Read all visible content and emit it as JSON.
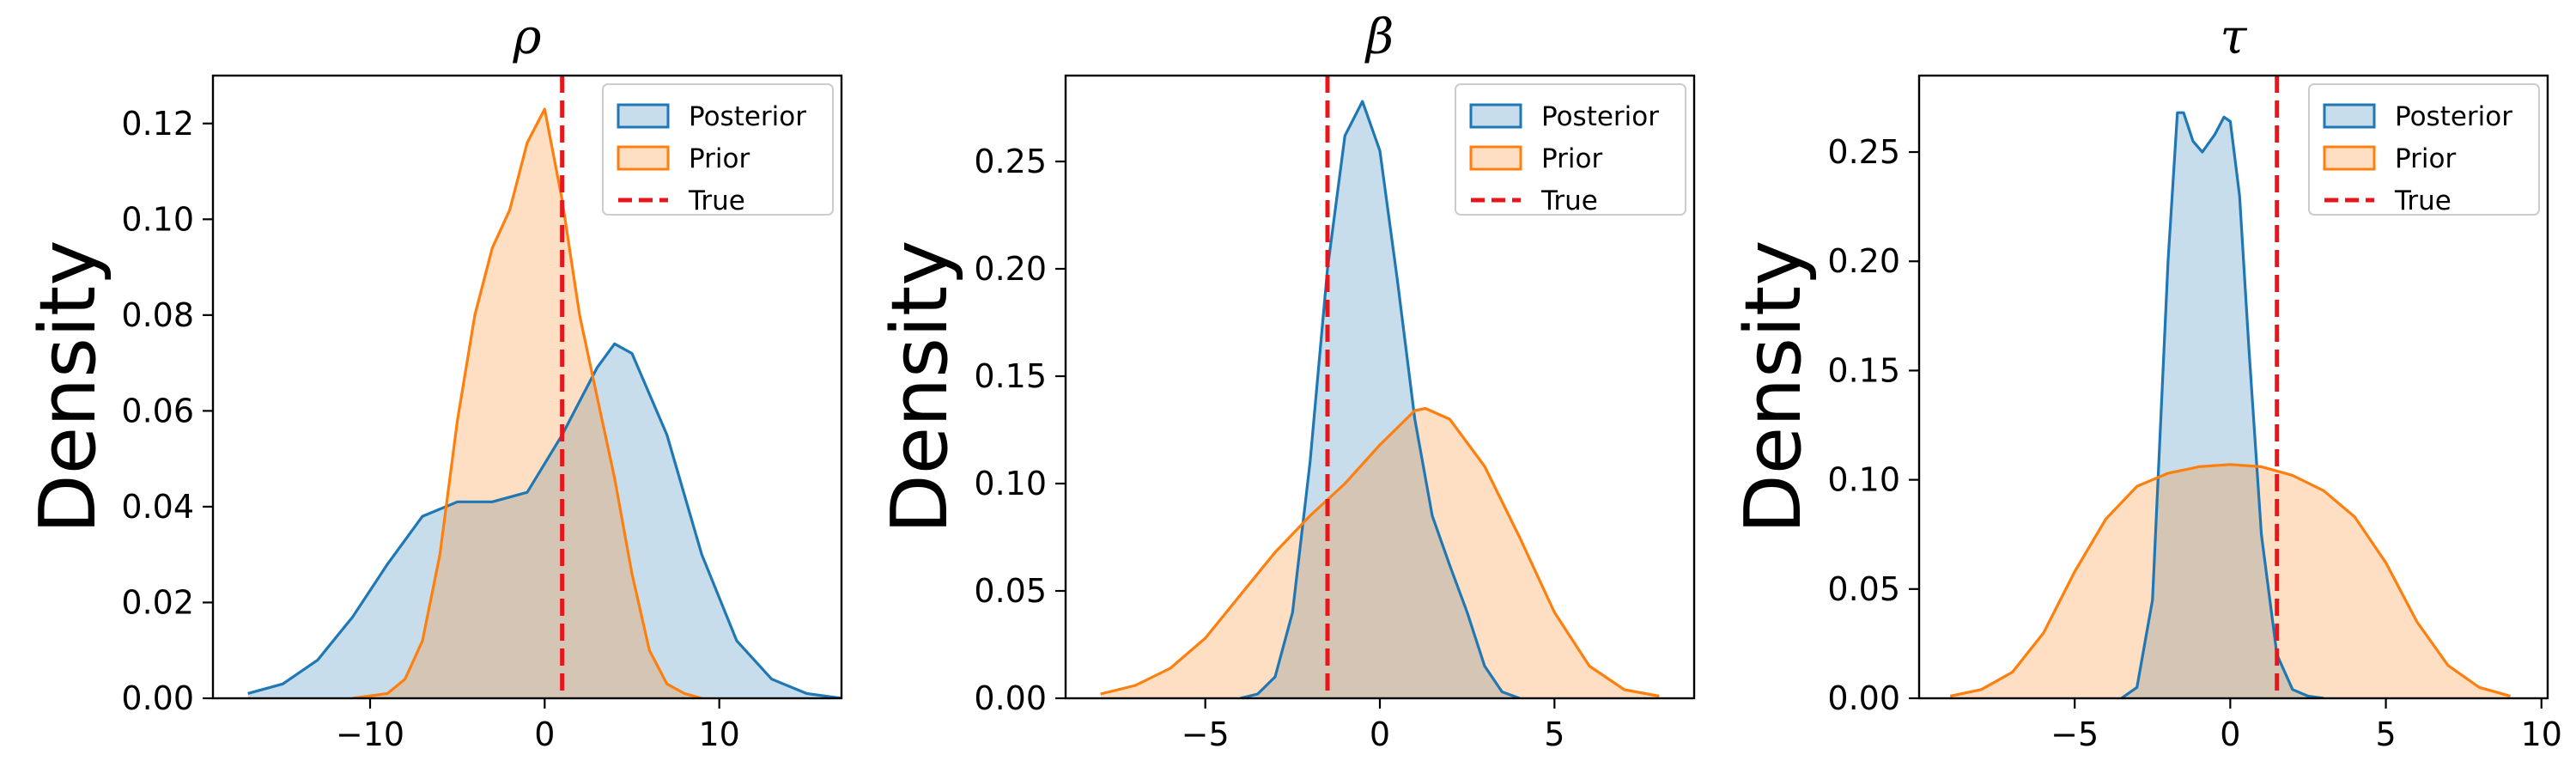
{
  "colors": {
    "posterior_line": "#1f77b4",
    "posterior_fill": "#1f77b4",
    "prior_line": "#ff7f0e",
    "prior_fill": "#ff7f0e",
    "true_line": "#e8151b"
  },
  "chart_data": [
    {
      "type": "area",
      "title": "ρ",
      "xlabel": "",
      "ylabel": "Density",
      "xlim": [
        -19,
        17
      ],
      "ylim": [
        0,
        0.13
      ],
      "xticks": [
        -10,
        0,
        10
      ],
      "xtick_labels": [
        "−10",
        "0",
        "10"
      ],
      "yticks": [
        0,
        0.02,
        0.04,
        0.06,
        0.08,
        0.1,
        0.12
      ],
      "ytick_labels": [
        "0.00",
        "0.02",
        "0.04",
        "0.06",
        "0.08",
        "0.10",
        "0.12"
      ],
      "true_value": 1.0,
      "legend": {
        "position": "top-right",
        "entries": [
          "Posterior",
          "Prior",
          "True"
        ]
      },
      "series": [
        {
          "name": "Posterior",
          "x": [
            -17,
            -15,
            -13,
            -11,
            -9,
            -7,
            -5,
            -3,
            -1,
            1,
            3,
            4,
            5,
            7,
            9,
            11,
            13,
            15,
            17
          ],
          "y": [
            0.001,
            0.003,
            0.008,
            0.017,
            0.028,
            0.038,
            0.041,
            0.041,
            0.043,
            0.055,
            0.069,
            0.074,
            0.072,
            0.055,
            0.03,
            0.012,
            0.004,
            0.001,
            0.0
          ]
        },
        {
          "name": "Prior",
          "x": [
            -11,
            -9,
            -8,
            -7,
            -6,
            -5,
            -4,
            -3,
            -2,
            -1,
            0,
            1,
            2,
            3,
            4,
            5,
            6,
            7,
            8,
            9
          ],
          "y": [
            0.0,
            0.001,
            0.004,
            0.012,
            0.03,
            0.058,
            0.08,
            0.094,
            0.102,
            0.116,
            0.123,
            0.104,
            0.08,
            0.063,
            0.046,
            0.026,
            0.01,
            0.003,
            0.001,
            0.0
          ]
        }
      ]
    },
    {
      "type": "area",
      "title": "β",
      "xlabel": "",
      "ylabel": "Density",
      "xlim": [
        -9,
        9
      ],
      "ylim": [
        0,
        0.29
      ],
      "xticks": [
        -5,
        0,
        5
      ],
      "xtick_labels": [
        "−5",
        "0",
        "5"
      ],
      "yticks": [
        0,
        0.05,
        0.1,
        0.15,
        0.2,
        0.25
      ],
      "ytick_labels": [
        "0.00",
        "0.05",
        "0.10",
        "0.15",
        "0.20",
        "0.25"
      ],
      "true_value": -1.5,
      "legend": {
        "position": "top-right",
        "entries": [
          "Posterior",
          "Prior",
          "True"
        ]
      },
      "series": [
        {
          "name": "Posterior",
          "x": [
            -4,
            -3.5,
            -3,
            -2.5,
            -2,
            -1.5,
            -1,
            -0.5,
            0,
            0.5,
            1,
            1.5,
            2,
            2.5,
            3,
            3.5,
            4
          ],
          "y": [
            0.0,
            0.002,
            0.01,
            0.04,
            0.11,
            0.2,
            0.262,
            0.278,
            0.255,
            0.195,
            0.13,
            0.085,
            0.062,
            0.04,
            0.015,
            0.003,
            0.0
          ]
        },
        {
          "name": "Prior",
          "x": [
            -8,
            -7,
            -6,
            -5,
            -4,
            -3,
            -2,
            -1,
            0,
            1,
            1.3,
            2,
            3,
            4,
            5,
            6,
            7,
            8
          ],
          "y": [
            0.002,
            0.006,
            0.014,
            0.028,
            0.048,
            0.068,
            0.085,
            0.1,
            0.118,
            0.134,
            0.135,
            0.13,
            0.108,
            0.075,
            0.04,
            0.015,
            0.004,
            0.001
          ]
        }
      ]
    },
    {
      "type": "area",
      "title": "τ",
      "xlabel": "",
      "ylabel": "Density",
      "xlim": [
        -10,
        10.2
      ],
      "ylim": [
        0,
        0.285
      ],
      "xticks": [
        -5,
        0,
        5,
        10
      ],
      "xtick_labels": [
        "−5",
        "0",
        "5",
        "10"
      ],
      "yticks": [
        0,
        0.05,
        0.1,
        0.15,
        0.2,
        0.25
      ],
      "ytick_labels": [
        "0.00",
        "0.05",
        "0.10",
        "0.15",
        "0.20",
        "0.25"
      ],
      "true_value": 1.5,
      "legend": {
        "position": "top-right",
        "entries": [
          "Posterior",
          "Prior",
          "True"
        ]
      },
      "series": [
        {
          "name": "Posterior",
          "x": [
            -3.5,
            -3,
            -2.5,
            -2,
            -1.7,
            -1.5,
            -1.2,
            -0.9,
            -0.5,
            -0.2,
            0,
            0.3,
            0.6,
            1.0,
            1.5,
            2,
            2.5,
            3
          ],
          "y": [
            0.0,
            0.005,
            0.045,
            0.2,
            0.268,
            0.268,
            0.255,
            0.25,
            0.258,
            0.266,
            0.264,
            0.23,
            0.16,
            0.075,
            0.02,
            0.004,
            0.001,
            0.0
          ]
        },
        {
          "name": "Prior",
          "x": [
            -9,
            -8,
            -7,
            -6,
            -5,
            -4,
            -3,
            -2,
            -1,
            0,
            1,
            2,
            3,
            4,
            5,
            6,
            7,
            8,
            9
          ],
          "y": [
            0.001,
            0.004,
            0.012,
            0.03,
            0.058,
            0.082,
            0.097,
            0.103,
            0.106,
            0.107,
            0.106,
            0.102,
            0.095,
            0.083,
            0.062,
            0.035,
            0.015,
            0.005,
            0.001
          ]
        }
      ]
    }
  ]
}
